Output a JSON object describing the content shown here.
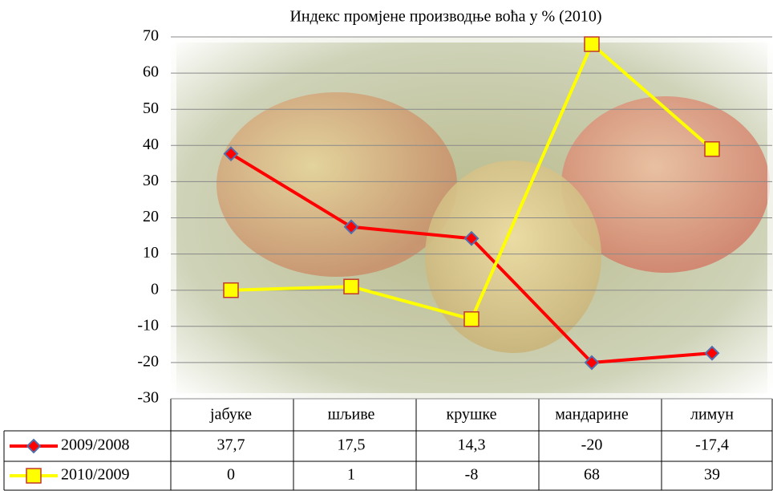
{
  "chart_data": {
    "type": "line",
    "title": "Индекс промјене производње воћа у % (2010)",
    "categories": [
      "јабуке",
      "шљиве",
      "крушке",
      "мандарине",
      "лимун"
    ],
    "series": [
      {
        "name": "2009/2008",
        "color": "#ff0000",
        "marker_color": "#4f6fb0",
        "marker": "diamond",
        "values": [
          37.7,
          17.5,
          14.3,
          -20,
          -17.4
        ],
        "value_labels": [
          "37,7",
          "17,5",
          "14,3",
          "-20",
          "-17,4"
        ]
      },
      {
        "name": "2010/2009",
        "color": "#ffff00",
        "marker_color": "#c0392b",
        "marker": "square",
        "values": [
          0,
          1,
          -8,
          68,
          39
        ],
        "value_labels": [
          "0",
          "1",
          "-8",
          "68",
          "39"
        ]
      }
    ],
    "ylim": [
      -30,
      70
    ],
    "yticks": [
      -30,
      -20,
      -10,
      0,
      10,
      20,
      30,
      40,
      50,
      60,
      70
    ],
    "grid": true
  }
}
